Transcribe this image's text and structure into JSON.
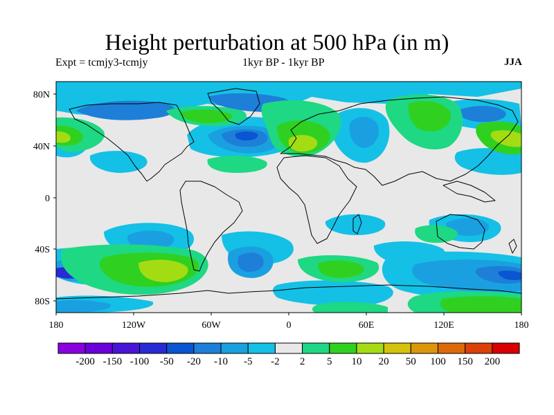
{
  "title": "Height perturbation at 500 hPa (in m)",
  "experiment_label": "Expt = tcmjy3-tcmjy",
  "period_label": "1kyr BP - 1kyr BP",
  "season_label": "JJA",
  "lat_labels": [
    "80N",
    "40N",
    "0",
    "40S",
    "80S"
  ],
  "lon_labels": [
    "180",
    "120W",
    "60W",
    "0",
    "60E",
    "120E",
    "180"
  ],
  "colorbar": {
    "labels": [
      "-200",
      "-150",
      "-100",
      "-50",
      "-20",
      "-10",
      "-5",
      "-2",
      "2",
      "5",
      "10",
      "20",
      "50",
      "100",
      "150",
      "200"
    ],
    "colors": [
      "#8a00e0",
      "#6a00dc",
      "#4a14d8",
      "#2a2ad4",
      "#0a55d2",
      "#1d7fd8",
      "#1aa0e0",
      "#14c0e6",
      "#e8e8e8",
      "#1ed883",
      "#30d020",
      "#a4dc14",
      "#d4c20c",
      "#dc960a",
      "#dc6a0a",
      "#dc4008",
      "#d80000"
    ]
  }
}
